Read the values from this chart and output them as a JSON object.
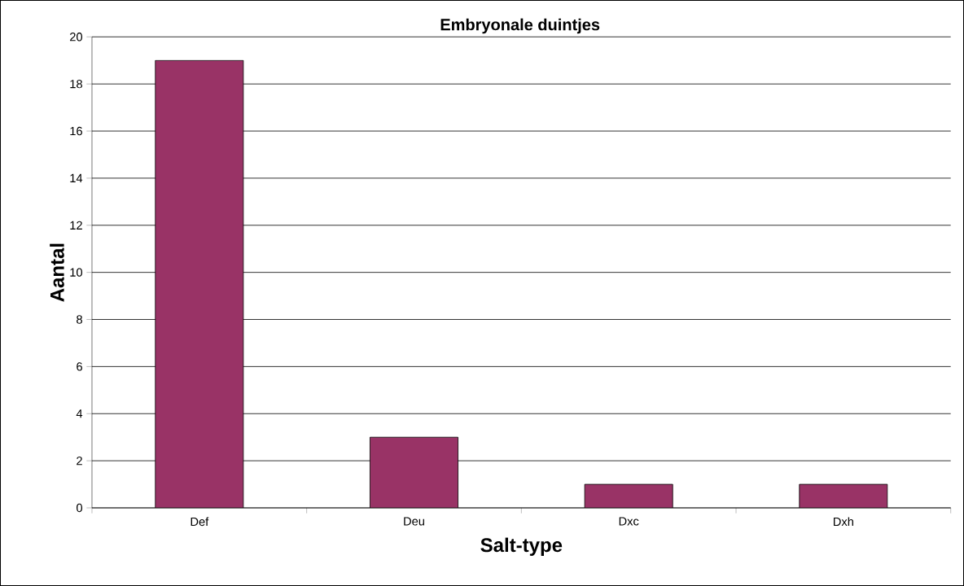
{
  "chart_data": {
    "type": "bar",
    "title": "Embryonale duintjes",
    "xlabel": "Salt-type",
    "ylabel": "Aantal",
    "categories": [
      "Def",
      "Deu",
      "Dxc",
      "Dxh"
    ],
    "values": [
      19,
      3,
      1,
      1
    ],
    "color": "#993366",
    "ylim": [
      0,
      20
    ],
    "yticks": [
      0,
      2,
      4,
      6,
      8,
      10,
      12,
      14,
      16,
      18,
      20
    ],
    "grid": "y"
  }
}
